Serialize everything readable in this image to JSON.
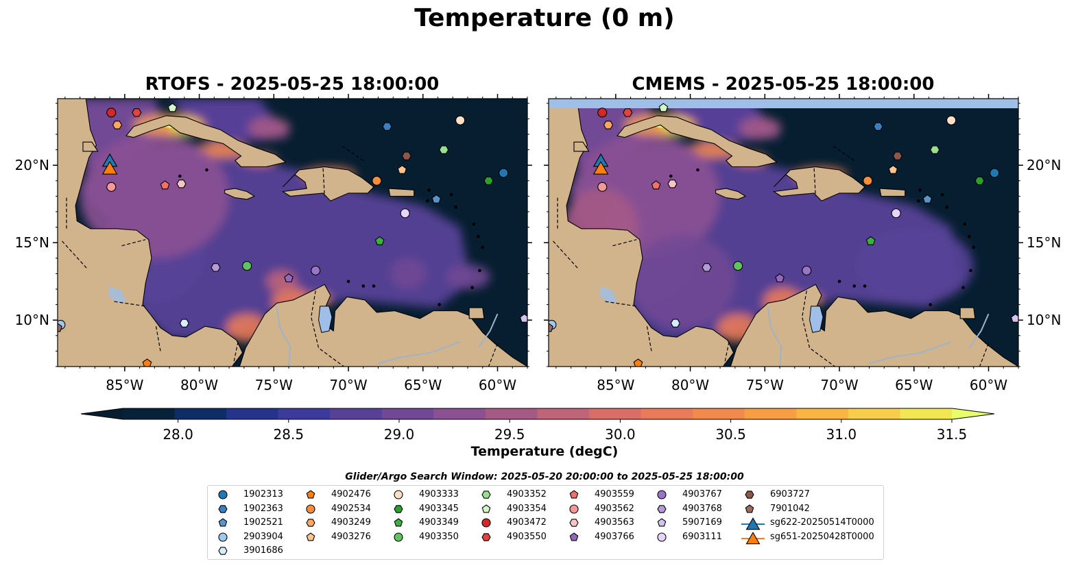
{
  "title": "Temperature (0 m)",
  "panels": [
    {
      "title": "RTOFS - 2025-05-25 18:00:00"
    },
    {
      "title": "CMEMS - 2025-05-25 18:00:00"
    }
  ],
  "map": {
    "lon_range": [
      -89.5,
      -58.0
    ],
    "lat_range": [
      7.0,
      24.3
    ],
    "lon_ticks": [
      -85,
      -80,
      -75,
      -70,
      -65,
      -60
    ],
    "lon_tick_labels": [
      "85°W",
      "80°W",
      "75°W",
      "70°W",
      "65°W",
      "60°W"
    ],
    "lat_ticks": [
      10,
      15,
      20
    ],
    "lat_tick_labels": [
      "10°N",
      "15°N",
      "20°N"
    ],
    "colors": {
      "land": "#d2b48c",
      "lakes": "#9fbfe8",
      "rivers": "#9fb3c8",
      "deep": "#061e30"
    }
  },
  "colorbar": {
    "label": "Temperature (degC)",
    "vmin": 27.75,
    "vmax": 31.5,
    "ticks": [
      28.0,
      28.5,
      29.0,
      29.5,
      30.0,
      30.5,
      31.0,
      31.5
    ],
    "tick_labels": [
      "28.0",
      "28.5",
      "29.0",
      "29.5",
      "30.0",
      "30.5",
      "31.0",
      "31.5"
    ],
    "colors": [
      "#06223a",
      "#0e2c66",
      "#25338a",
      "#3c3a9c",
      "#574197",
      "#714895",
      "#8c5193",
      "#a55a86",
      "#bf6479",
      "#d86e67",
      "#e97a5a",
      "#f2894d",
      "#f79d43",
      "#f9b442",
      "#f7cd4b",
      "#f3e655"
    ],
    "extend_min_color": "#061e30",
    "extend_max_color": "#e9fc6a"
  },
  "legend": {
    "title": "Glider/Argo Search Window: 2025-05-20 20:00:00 to 2025-05-25 18:00:00",
    "entries": [
      {
        "label": "1902313",
        "marker": "circle",
        "color": "#1f77b4",
        "lon": -59.6,
        "lat": 19.5
      },
      {
        "label": "1902363",
        "marker": "hexagon",
        "color": "#3a7fc0",
        "lon": -67.4,
        "lat": 22.5
      },
      {
        "label": "1902521",
        "marker": "pentagon",
        "color": "#5b93cc",
        "lon": -64.1,
        "lat": 17.8
      },
      {
        "label": "2903904",
        "marker": "circle",
        "color": "#9ec9ea",
        "lon": -89.3,
        "lat": 9.7
      },
      {
        "label": "3901686",
        "marker": "hexagon",
        "color": "#d6ecff",
        "lon": -81.0,
        "lat": 9.8
      },
      {
        "label": "4902476",
        "marker": "pentagon",
        "color": "#ff7f0e",
        "lon": -83.5,
        "lat": 7.2
      },
      {
        "label": "4902534",
        "marker": "circle",
        "color": "#f68e3c",
        "lon": -68.1,
        "lat": 19.0
      },
      {
        "label": "4903249",
        "marker": "hexagon",
        "color": "#fca660",
        "lon": -85.5,
        "lat": 22.6
      },
      {
        "label": "4903276",
        "marker": "pentagon",
        "color": "#fdc48d",
        "lon": -66.4,
        "lat": 19.7
      },
      {
        "label": "4903333",
        "marker": "circle",
        "color": "#fde0c6",
        "lon": -62.5,
        "lat": 22.9
      },
      {
        "label": "4903345",
        "marker": "hexagon",
        "color": "#2ca02c",
        "lon": -60.6,
        "lat": 19.0
      },
      {
        "label": "4903349",
        "marker": "pentagon",
        "color": "#3cb03c",
        "lon": -67.9,
        "lat": 15.1
      },
      {
        "label": "4903350",
        "marker": "circle",
        "color": "#5ec45e",
        "lon": -76.8,
        "lat": 13.5
      },
      {
        "label": "4903352",
        "marker": "hexagon",
        "color": "#98e090",
        "lon": -63.6,
        "lat": 21.0
      },
      {
        "label": "4903354",
        "marker": "pentagon",
        "color": "#d4f7c8",
        "lon": -81.8,
        "lat": 23.7
      },
      {
        "label": "4903472",
        "marker": "circle",
        "color": "#d62728",
        "lon": -85.9,
        "lat": 23.4
      },
      {
        "label": "4903550",
        "marker": "hexagon",
        "color": "#e0443e",
        "lon": -84.2,
        "lat": 23.4
      },
      {
        "label": "4903559",
        "marker": "pentagon",
        "color": "#f0706a",
        "lon": -82.3,
        "lat": 18.7
      },
      {
        "label": "4903562",
        "marker": "circle",
        "color": "#f4989a",
        "lon": -85.9,
        "lat": 18.6
      },
      {
        "label": "4903563",
        "marker": "hexagon",
        "color": "#fac4c4",
        "lon": -81.2,
        "lat": 18.8
      },
      {
        "label": "4903766",
        "marker": "pentagon",
        "color": "#9467bd",
        "lon": -74.0,
        "lat": 12.7
      },
      {
        "label": "4903767",
        "marker": "circle",
        "color": "#9a74c6",
        "lon": -72.2,
        "lat": 13.2
      },
      {
        "label": "4903768",
        "marker": "hexagon",
        "color": "#b39ad8",
        "lon": -78.9,
        "lat": 13.4
      },
      {
        "label": "5907169",
        "marker": "pentagon",
        "color": "#d4c2f0",
        "lon": -58.2,
        "lat": 10.1
      },
      {
        "label": "6903111",
        "marker": "circle",
        "color": "#e8d4fa",
        "lon": -66.2,
        "lat": 16.9
      },
      {
        "label": "6903727",
        "marker": "hexagon",
        "color": "#8c564b",
        "lon": -66.1,
        "lat": 20.6
      },
      {
        "label": "7901042",
        "marker": "pentagon",
        "color": "#9a6b5e",
        "lon": -89.5,
        "lat": 9.5
      },
      {
        "label": "sg622-20250514T0000",
        "marker": "triangle",
        "color": "#1f77b4",
        "lon": -86.0,
        "lat": 20.3
      },
      {
        "label": "sg651-20250428T0000",
        "marker": "triangle",
        "color": "#ff7f0e",
        "lon": -86.0,
        "lat": 19.8
      }
    ]
  }
}
